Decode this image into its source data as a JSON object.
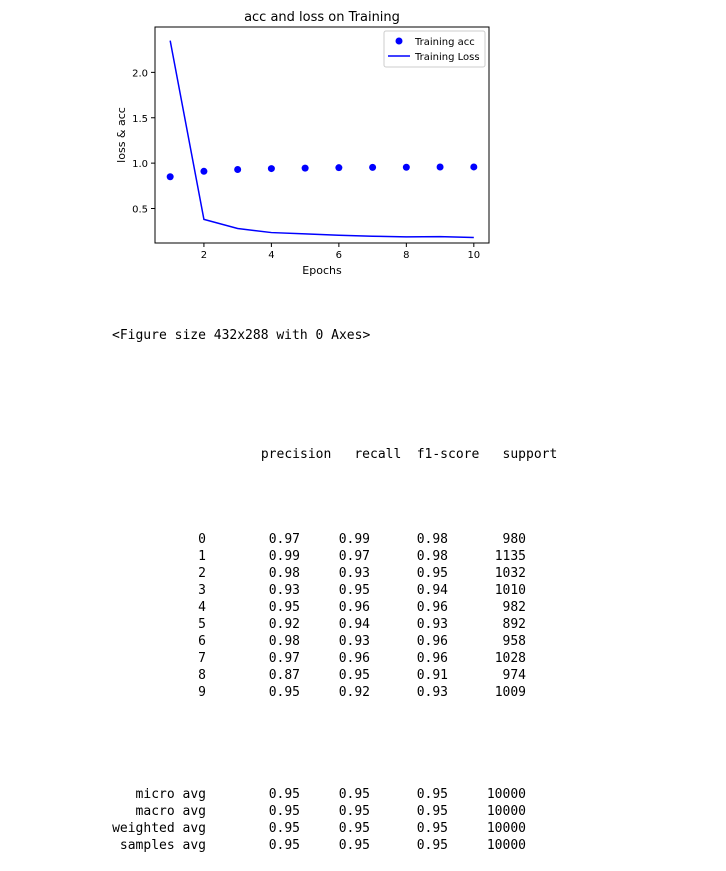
{
  "chart_data": {
    "type": "line",
    "title": "acc and loss on Training",
    "xlabel": "Epochs",
    "ylabel": "loss & acc",
    "x": [
      1,
      2,
      3,
      4,
      5,
      6,
      7,
      8,
      9,
      10
    ],
    "xlim": [
      0.55,
      10.45
    ],
    "ylim": [
      0.12,
      2.5
    ],
    "xticks": [
      2,
      4,
      6,
      8,
      10
    ],
    "yticks": [
      0.5,
      1.0,
      1.5,
      2.0
    ],
    "ytick_labels": [
      "0.5",
      "1.0",
      "1.5",
      "2.0"
    ],
    "grid": false,
    "legend_position": "top-right",
    "series": [
      {
        "name": "Training acc",
        "kind": "scatter",
        "color": "#0000ff",
        "values": [
          0.85,
          0.91,
          0.93,
          0.94,
          0.945,
          0.95,
          0.953,
          0.955,
          0.957,
          0.958
        ]
      },
      {
        "name": "Training Loss",
        "kind": "line",
        "color": "#0000ff",
        "values": [
          2.35,
          0.38,
          0.28,
          0.235,
          0.22,
          0.205,
          0.195,
          0.188,
          0.19,
          0.18
        ]
      }
    ]
  },
  "output": {
    "figure_line": "<Figure size 432x288 with 0 Axes>",
    "headers": [
      "",
      "precision",
      "recall",
      "f1-score",
      "support"
    ],
    "rows": [
      [
        "0",
        "0.97",
        "0.99",
        "0.98",
        "980"
      ],
      [
        "1",
        "0.99",
        "0.97",
        "0.98",
        "1135"
      ],
      [
        "2",
        "0.98",
        "0.93",
        "0.95",
        "1032"
      ],
      [
        "3",
        "0.93",
        "0.95",
        "0.94",
        "1010"
      ],
      [
        "4",
        "0.95",
        "0.96",
        "0.96",
        "982"
      ],
      [
        "5",
        "0.92",
        "0.94",
        "0.93",
        "892"
      ],
      [
        "6",
        "0.98",
        "0.93",
        "0.96",
        "958"
      ],
      [
        "7",
        "0.97",
        "0.96",
        "0.96",
        "1028"
      ],
      [
        "8",
        "0.87",
        "0.95",
        "0.91",
        "974"
      ],
      [
        "9",
        "0.95",
        "0.92",
        "0.93",
        "1009"
      ]
    ],
    "avg_rows": [
      [
        "micro avg",
        "0.95",
        "0.95",
        "0.95",
        "10000"
      ],
      [
        "macro avg",
        "0.95",
        "0.95",
        "0.95",
        "10000"
      ],
      [
        "weighted avg",
        "0.95",
        "0.95",
        "0.95",
        "10000"
      ],
      [
        "samples avg",
        "0.95",
        "0.95",
        "0.95",
        "10000"
      ]
    ]
  }
}
